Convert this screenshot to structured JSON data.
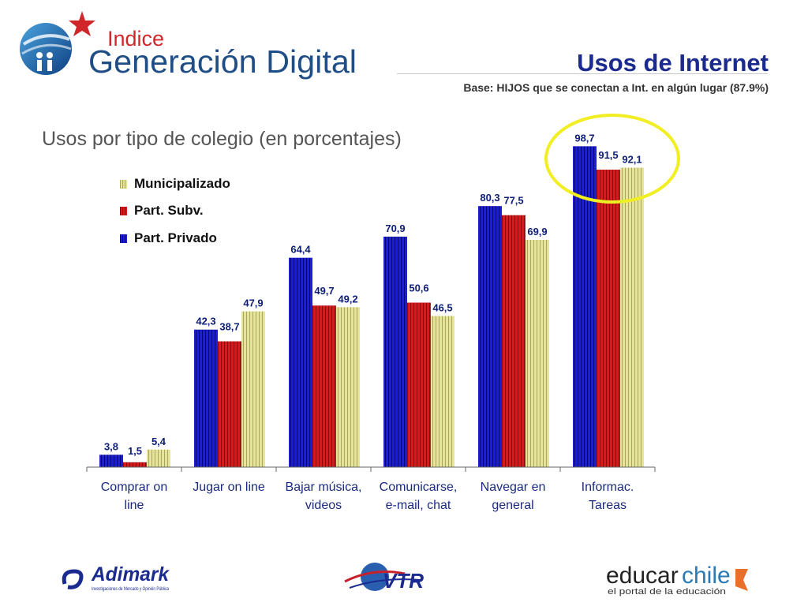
{
  "brand": {
    "logo_small_word": "Indice",
    "logo_main_word": "Generación Digital"
  },
  "header": {
    "title": "Usos de Internet",
    "subtitle": "Base: HIJOS que se conectan a Int. en algún lugar (87.9%)"
  },
  "colors": {
    "municipalizado": "#e6e39a",
    "part_subv": "#e0161c",
    "part_privado": "#1c1cdc",
    "highlight_ring": "#f2ee24",
    "title": "#1b2a8f"
  },
  "chart_data": {
    "type": "bar",
    "title": "Usos por tipo de colegio (en porcentajes)",
    "categories": [
      [
        "Comprar on",
        "line"
      ],
      [
        "Jugar on line"
      ],
      [
        "Bajar música,",
        "videos"
      ],
      [
        "Comunicarse,",
        "e-mail, chat"
      ],
      [
        "Navegar en",
        "general"
      ],
      [
        "Informac.",
        "Tareas"
      ]
    ],
    "series": [
      {
        "name": "Part. Privado",
        "values": [
          3.8,
          42.3,
          64.4,
          70.9,
          80.3,
          98.7
        ],
        "labels": [
          "3,8",
          "42,3",
          "64,4",
          "70,9",
          "80,3",
          "98,7"
        ]
      },
      {
        "name": "Part. Subv.",
        "values": [
          1.5,
          38.7,
          49.7,
          50.6,
          77.5,
          91.5
        ],
        "labels": [
          "1,5",
          "38,7",
          "49,7",
          "50,6",
          "77,5",
          "91,5"
        ]
      },
      {
        "name": "Municipalizado",
        "values": [
          5.4,
          47.9,
          49.2,
          46.5,
          69.9,
          92.1
        ],
        "labels": [
          "5,4",
          "47,9",
          "49,2",
          "46,5",
          "69,9",
          "92,1"
        ]
      }
    ],
    "legend_order": [
      "Municipalizado",
      "Part. Subv.",
      "Part. Privado"
    ],
    "legend_placement": "top-left",
    "ylim": [
      0,
      100
    ],
    "grid": false,
    "data_labels": true,
    "highlighted_category": "Informac. Tareas"
  },
  "footer": {
    "adimark": {
      "name": "Adimark",
      "tagline": "Investigaciones de Mercado y Opinión Pública"
    },
    "vtr": {
      "name": "VTR"
    },
    "educarchile": {
      "name_a": "educar",
      "name_b": "chile",
      "tagline": "el portal de la educación"
    }
  }
}
